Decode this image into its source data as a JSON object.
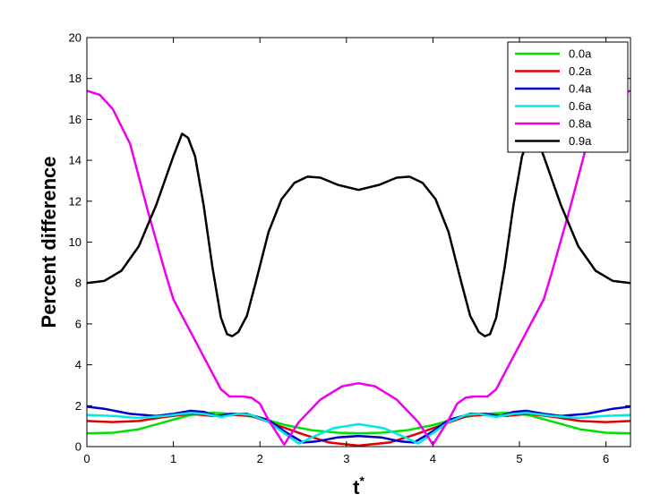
{
  "chart_data": {
    "type": "line",
    "xlabel": "t",
    "xlabel_superscript": "*",
    "ylabel": "Percent difference",
    "xlim": [
      0,
      6.2832
    ],
    "ylim": [
      0,
      20
    ],
    "xticks": [
      0,
      1,
      2,
      3,
      4,
      5,
      6
    ],
    "yticks": [
      0,
      2,
      4,
      6,
      8,
      10,
      12,
      14,
      16,
      18,
      20
    ],
    "grid": false,
    "legend_position": "top-right",
    "series": [
      {
        "name": "0.0a",
        "color": "#00e000",
        "points": [
          [
            0,
            0.65
          ],
          [
            0.3,
            0.68
          ],
          [
            0.6,
            0.85
          ],
          [
            0.9,
            1.2
          ],
          [
            1.2,
            1.55
          ],
          [
            1.45,
            1.65
          ],
          [
            1.7,
            1.6
          ],
          [
            2.0,
            1.4
          ],
          [
            2.3,
            1.05
          ],
          [
            2.6,
            0.8
          ],
          [
            2.9,
            0.68
          ],
          [
            3.14,
            0.65
          ],
          [
            3.4,
            0.68
          ],
          [
            3.7,
            0.8
          ],
          [
            4.0,
            1.05
          ],
          [
            4.3,
            1.4
          ],
          [
            4.6,
            1.6
          ],
          [
            4.85,
            1.65
          ],
          [
            5.1,
            1.55
          ],
          [
            5.4,
            1.2
          ],
          [
            5.7,
            0.85
          ],
          [
            6.0,
            0.68
          ],
          [
            6.2832,
            0.65
          ]
        ]
      },
      {
        "name": "0.2a",
        "color": "#e00000",
        "points": [
          [
            0,
            1.25
          ],
          [
            0.3,
            1.2
          ],
          [
            0.6,
            1.25
          ],
          [
            0.9,
            1.45
          ],
          [
            1.2,
            1.6
          ],
          [
            1.45,
            1.5
          ],
          [
            1.7,
            1.55
          ],
          [
            1.9,
            1.5
          ],
          [
            2.2,
            1.05
          ],
          [
            2.5,
            0.6
          ],
          [
            2.8,
            0.2
          ],
          [
            3.14,
            0.05
          ],
          [
            3.5,
            0.2
          ],
          [
            3.8,
            0.6
          ],
          [
            4.1,
            1.05
          ],
          [
            4.4,
            1.5
          ],
          [
            4.6,
            1.55
          ],
          [
            4.85,
            1.5
          ],
          [
            5.1,
            1.6
          ],
          [
            5.4,
            1.45
          ],
          [
            5.7,
            1.25
          ],
          [
            6.0,
            1.2
          ],
          [
            6.2832,
            1.25
          ]
        ]
      },
      {
        "name": "0.4a",
        "color": "#0000cc",
        "points": [
          [
            0,
            1.95
          ],
          [
            0.2,
            1.85
          ],
          [
            0.5,
            1.6
          ],
          [
            0.8,
            1.5
          ],
          [
            1.0,
            1.6
          ],
          [
            1.2,
            1.75
          ],
          [
            1.35,
            1.7
          ],
          [
            1.5,
            1.5
          ],
          [
            1.7,
            1.6
          ],
          [
            1.85,
            1.6
          ],
          [
            2.1,
            1.3
          ],
          [
            2.3,
            0.7
          ],
          [
            2.5,
            0.2
          ],
          [
            2.65,
            0.25
          ],
          [
            2.9,
            0.45
          ],
          [
            3.14,
            0.52
          ],
          [
            3.4,
            0.45
          ],
          [
            3.63,
            0.25
          ],
          [
            3.78,
            0.2
          ],
          [
            3.98,
            0.7
          ],
          [
            4.18,
            1.3
          ],
          [
            4.43,
            1.6
          ],
          [
            4.58,
            1.6
          ],
          [
            4.78,
            1.5
          ],
          [
            4.93,
            1.7
          ],
          [
            5.08,
            1.75
          ],
          [
            5.28,
            1.6
          ],
          [
            5.48,
            1.5
          ],
          [
            5.78,
            1.6
          ],
          [
            6.08,
            1.85
          ],
          [
            6.2832,
            1.95
          ]
        ]
      },
      {
        "name": "0.6a",
        "color": "#00e8e8",
        "points": [
          [
            0,
            1.55
          ],
          [
            0.3,
            1.5
          ],
          [
            0.6,
            1.4
          ],
          [
            0.9,
            1.5
          ],
          [
            1.2,
            1.65
          ],
          [
            1.35,
            1.6
          ],
          [
            1.55,
            1.45
          ],
          [
            1.75,
            1.6
          ],
          [
            1.9,
            1.55
          ],
          [
            2.1,
            1.2
          ],
          [
            2.3,
            0.6
          ],
          [
            2.45,
            0.15
          ],
          [
            2.6,
            0.45
          ],
          [
            2.85,
            0.9
          ],
          [
            3.14,
            1.1
          ],
          [
            3.43,
            0.9
          ],
          [
            3.68,
            0.45
          ],
          [
            3.83,
            0.15
          ],
          [
            3.98,
            0.6
          ],
          [
            4.18,
            1.2
          ],
          [
            4.38,
            1.55
          ],
          [
            4.53,
            1.6
          ],
          [
            4.73,
            1.45
          ],
          [
            4.93,
            1.6
          ],
          [
            5.08,
            1.65
          ],
          [
            5.38,
            1.5
          ],
          [
            5.68,
            1.4
          ],
          [
            5.98,
            1.5
          ],
          [
            6.2832,
            1.55
          ]
        ]
      },
      {
        "name": "0.8a",
        "color": "#ee00ee",
        "points": [
          [
            0,
            17.4
          ],
          [
            0.15,
            17.2
          ],
          [
            0.3,
            16.5
          ],
          [
            0.5,
            14.8
          ],
          [
            0.7,
            11.6
          ],
          [
            0.9,
            8.6
          ],
          [
            1.0,
            7.2
          ],
          [
            1.2,
            5.6
          ],
          [
            1.4,
            4.0
          ],
          [
            1.55,
            2.8
          ],
          [
            1.65,
            2.45
          ],
          [
            1.8,
            2.45
          ],
          [
            1.9,
            2.4
          ],
          [
            2.0,
            2.1
          ],
          [
            2.1,
            1.3
          ],
          [
            2.28,
            0.1
          ],
          [
            2.45,
            1.2
          ],
          [
            2.7,
            2.3
          ],
          [
            2.95,
            2.95
          ],
          [
            3.14,
            3.1
          ],
          [
            3.33,
            2.95
          ],
          [
            3.58,
            2.3
          ],
          [
            3.83,
            1.2
          ],
          [
            4.0,
            0.1
          ],
          [
            4.18,
            1.3
          ],
          [
            4.28,
            2.1
          ],
          [
            4.38,
            2.4
          ],
          [
            4.48,
            2.45
          ],
          [
            4.63,
            2.45
          ],
          [
            4.73,
            2.8
          ],
          [
            4.88,
            4.0
          ],
          [
            5.08,
            5.6
          ],
          [
            5.28,
            7.2
          ],
          [
            5.38,
            8.6
          ],
          [
            5.58,
            11.6
          ],
          [
            5.78,
            14.8
          ],
          [
            5.98,
            16.5
          ],
          [
            6.13,
            17.2
          ],
          [
            6.2832,
            17.4
          ]
        ]
      },
      {
        "name": "0.9a",
        "color": "#000000",
        "points": [
          [
            0,
            8.0
          ],
          [
            0.2,
            8.1
          ],
          [
            0.4,
            8.6
          ],
          [
            0.6,
            9.8
          ],
          [
            0.8,
            11.8
          ],
          [
            1.0,
            14.2
          ],
          [
            1.1,
            15.3
          ],
          [
            1.17,
            15.1
          ],
          [
            1.25,
            14.2
          ],
          [
            1.35,
            11.8
          ],
          [
            1.45,
            8.8
          ],
          [
            1.55,
            6.3
          ],
          [
            1.62,
            5.5
          ],
          [
            1.68,
            5.4
          ],
          [
            1.75,
            5.6
          ],
          [
            1.85,
            6.4
          ],
          [
            1.95,
            8.0
          ],
          [
            2.1,
            10.5
          ],
          [
            2.25,
            12.1
          ],
          [
            2.4,
            12.9
          ],
          [
            2.55,
            13.2
          ],
          [
            2.7,
            13.15
          ],
          [
            2.9,
            12.8
          ],
          [
            3.14,
            12.55
          ],
          [
            3.38,
            12.8
          ],
          [
            3.58,
            13.15
          ],
          [
            3.73,
            13.2
          ],
          [
            3.88,
            12.9
          ],
          [
            4.03,
            12.1
          ],
          [
            4.18,
            10.5
          ],
          [
            4.33,
            8.0
          ],
          [
            4.43,
            6.4
          ],
          [
            4.53,
            5.6
          ],
          [
            4.6,
            5.4
          ],
          [
            4.66,
            5.5
          ],
          [
            4.73,
            6.3
          ],
          [
            4.83,
            8.8
          ],
          [
            4.93,
            11.8
          ],
          [
            5.03,
            14.2
          ],
          [
            5.11,
            15.1
          ],
          [
            5.18,
            15.3
          ],
          [
            5.28,
            14.2
          ],
          [
            5.48,
            11.8
          ],
          [
            5.68,
            9.8
          ],
          [
            5.88,
            8.6
          ],
          [
            6.08,
            8.1
          ],
          [
            6.2832,
            8.0
          ]
        ]
      }
    ]
  }
}
